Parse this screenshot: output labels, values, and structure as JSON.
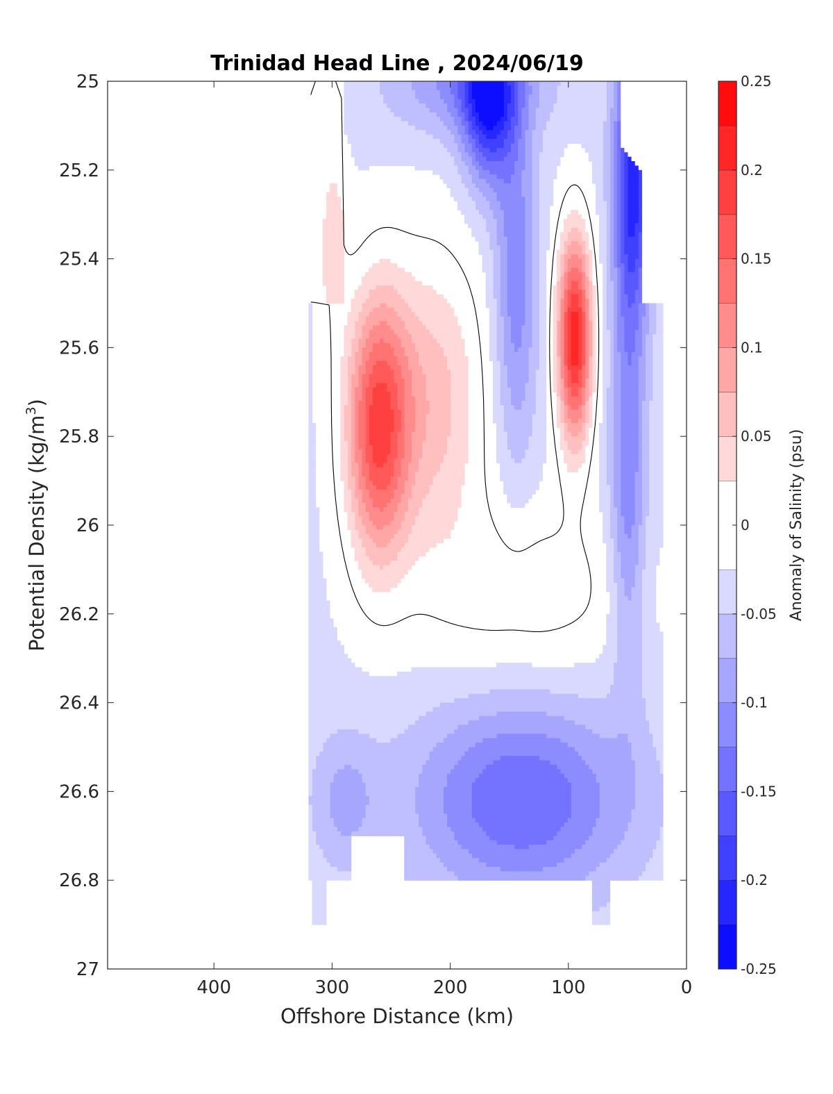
{
  "chart_data": {
    "type": "contour",
    "title": "Trinidad Head Line , 2024/06/19",
    "xlabel": "Offshore Distance (km)",
    "ylabel": "Potential Density (kg/m",
    "ylabel_sup": "3",
    "ylabel_end": ")",
    "colorbar_label": "Anomaly of Salinity (psu)",
    "x_reversed": true,
    "xlim": [
      490,
      0
    ],
    "x_ticks": [
      400,
      300,
      200,
      100,
      0
    ],
    "x_tick_labels": [
      "400",
      "300",
      "200",
      "100",
      "0"
    ],
    "ylim": [
      25,
      27
    ],
    "y_reversed": true,
    "y_ticks": [
      25,
      25.2,
      25.4,
      25.6,
      25.8,
      26,
      26.2,
      26.4,
      26.6,
      26.8,
      27
    ],
    "y_tick_labels": [
      "25",
      "25.2",
      "25.4",
      "25.6",
      "25.8",
      "26",
      "26.2",
      "26.4",
      "26.6",
      "26.8",
      "27"
    ],
    "colorbar_range": [
      -0.25,
      0.25
    ],
    "colorbar_ticks": [
      0.25,
      0.2,
      0.15,
      0.1,
      0.05,
      0,
      -0.05,
      -0.1,
      -0.15,
      -0.2,
      -0.25
    ],
    "colorbar_tick_labels": [
      "0.25",
      "0.2",
      "0.15",
      "0.1",
      "0.05",
      "0",
      "-0.05",
      "-0.1",
      "-0.15",
      "-0.2",
      "-0.25"
    ],
    "contour_levels": [
      -0.25,
      -0.225,
      -0.2,
      -0.175,
      -0.15,
      -0.125,
      -0.1,
      -0.075,
      -0.05,
      -0.025,
      0.025,
      0.05,
      0.075,
      0.1,
      0.125,
      0.15,
      0.175,
      0.2,
      0.225,
      0.25
    ],
    "zero_contour": true,
    "colormap": {
      "negative": "#0000ff",
      "zero": "#ffffff",
      "positive": "#ff0000"
    },
    "data_x_range": [
      20,
      320
    ],
    "regions": [
      {
        "name": "offshore positive core",
        "x_center": 262,
        "y_center": 25.8,
        "peak": 0.17
      },
      {
        "name": "nearshore positive core",
        "x_center": 95,
        "y_center": 25.6,
        "peak": 0.21
      },
      {
        "name": "surface negative near 170 km",
        "x_center": 168,
        "y_center": 25.05,
        "peak": -0.19
      },
      {
        "name": "nearshore surface negative",
        "x_center": 50,
        "y_center": 25.2,
        "peak": -0.19
      },
      {
        "name": "deep negative layer",
        "x_center": 140,
        "y_center": 26.6,
        "peak": -0.14
      }
    ]
  }
}
